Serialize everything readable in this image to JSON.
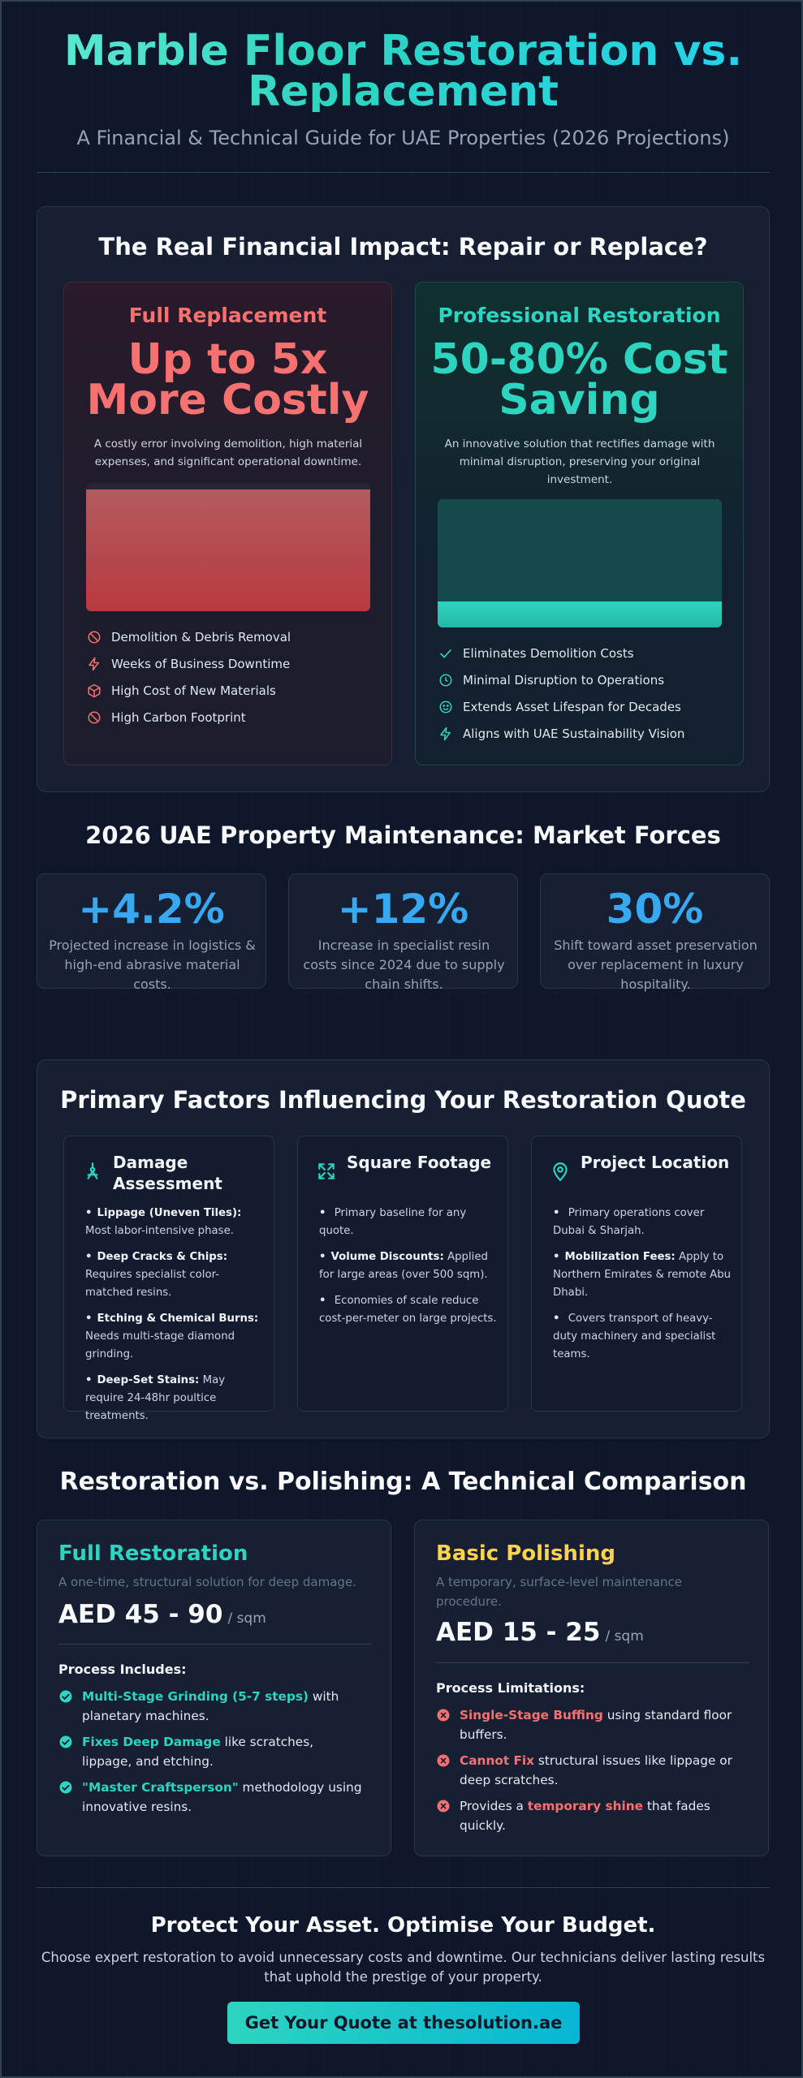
{
  "header": {
    "title": "Marble Floor Restoration vs. Replacement",
    "subtitle": "A Financial & Technical Guide for UAE Properties (2026 Projections)"
  },
  "impact": {
    "heading": "The Real Financial Impact: Repair or Replace?",
    "replacement": {
      "label": "Full Replacement",
      "headline": "Up to 5x More Costly",
      "description": "A costly error involving demolition, high material expenses, and significant operational downtime.",
      "bar_fill": 0.95,
      "items": [
        {
          "icon": "ban-icon",
          "text": "Demolition & Debris Removal"
        },
        {
          "icon": "lightning-icon",
          "text": "Weeks of Business Downtime"
        },
        {
          "icon": "box-icon",
          "text": "High Cost of New Materials"
        },
        {
          "icon": "ban-icon",
          "text": "High Carbon Footprint"
        }
      ]
    },
    "restoration": {
      "label": "Professional Restoration",
      "headline": "50-80% Cost Saving",
      "description": "An innovative solution that rectifies damage with minimal disruption, preserving your original investment.",
      "bar_fill": 0.2,
      "items": [
        {
          "icon": "check-icon",
          "text": "Eliminates Demolition Costs"
        },
        {
          "icon": "clock-icon",
          "text": "Minimal Disruption to Operations"
        },
        {
          "icon": "smile-icon",
          "text": "Extends Asset Lifespan for Decades"
        },
        {
          "icon": "leaf-icon",
          "text": "Aligns with UAE Sustainability Vision"
        }
      ]
    },
    "colors": {
      "replacement": "#f87171",
      "restoration": "#2dd4bf"
    }
  },
  "market": {
    "heading": "2026 UAE Property Maintenance: Market Forces",
    "stats": [
      {
        "value": "+4.2%",
        "description": "Projected increase in logistics & high-end abrasive material costs."
      },
      {
        "value": "+12%",
        "description": "Increase in specialist resin costs since 2024 due to supply chain shifts."
      },
      {
        "value": "30%",
        "description": "Shift toward asset preservation over replacement in luxury hospitality."
      }
    ]
  },
  "factors": {
    "heading": "Primary Factors Influencing Your Restoration Quote",
    "cards": [
      {
        "icon": "hazard-icon",
        "title": "Damage Assessment",
        "items": [
          {
            "bold": "Lippage (Uneven Tiles):",
            "text": "Most labor-intensive phase."
          },
          {
            "bold": "Deep Cracks & Chips:",
            "text": "Requires specialist color-matched resins."
          },
          {
            "bold": "Etching & Chemical Burns:",
            "text": "Needs multi-stage diamond grinding."
          },
          {
            "bold": "Deep-Set Stains:",
            "text": "May require 24-48hr poultice treatments."
          }
        ]
      },
      {
        "icon": "expand-icon",
        "title": "Square Footage",
        "items": [
          {
            "bold": "",
            "text": "Primary baseline for any quote."
          },
          {
            "bold": "Volume Discounts:",
            "text": "Applied for large areas (over 500 sqm)."
          },
          {
            "bold": "",
            "text": "Economies of scale reduce cost-per-meter on large projects."
          }
        ]
      },
      {
        "icon": "map-pin-icon",
        "title": "Project Location",
        "items": [
          {
            "bold": "",
            "text": "Primary operations cover Dubai & Sharjah."
          },
          {
            "bold": "Mobilization Fees:",
            "text": "Apply to Northern Emirates & remote Abu Dhabi."
          },
          {
            "bold": "",
            "text": "Covers transport of heavy-duty machinery and specialist teams."
          }
        ]
      }
    ]
  },
  "technical": {
    "heading": "Restoration vs. Polishing: A Technical Comparison",
    "restoration": {
      "title": "Full Restoration",
      "description": "A one-time, structural solution for deep damage.",
      "price": "AED 45 - 90",
      "unit": "/ sqm",
      "list_heading": "Process Includes:",
      "rows": [
        {
          "highlight": "Multi-Stage Grinding (5-7 steps)",
          "text": " with planetary machines."
        },
        {
          "highlight": "Fixes Deep Damage",
          "text": " like scratches, lippage, and etching."
        },
        {
          "highlight": "\"Master Craftsperson\"",
          "text": " methodology using innovative resins."
        }
      ]
    },
    "polishing": {
      "title": "Basic Polishing",
      "description": "A temporary, surface-level maintenance procedure.",
      "price": "AED 15 - 25",
      "unit": "/ sqm",
      "list_heading": "Process Limitations:",
      "rows": [
        {
          "prefix": "",
          "highlight": "Single-Stage Buffing",
          "text": " using standard floor buffers."
        },
        {
          "prefix": "",
          "highlight": "Cannot Fix",
          "text": " structural issues like lippage or deep scratches."
        },
        {
          "prefix": "Provides a ",
          "highlight": "temporary shine",
          "text": " that fades quickly."
        }
      ]
    },
    "colors": {
      "restoration": "#2dd4bf",
      "polishing": "#fcd34d"
    }
  },
  "cta": {
    "title": "Protect Your Asset. Optimise Your Budget.",
    "text": "Choose expert restoration to avoid unnecessary costs and downtime. Our technicians deliver lasting results that uphold the prestige of your property.",
    "button": "Get Your Quote at thesolution.ae"
  }
}
